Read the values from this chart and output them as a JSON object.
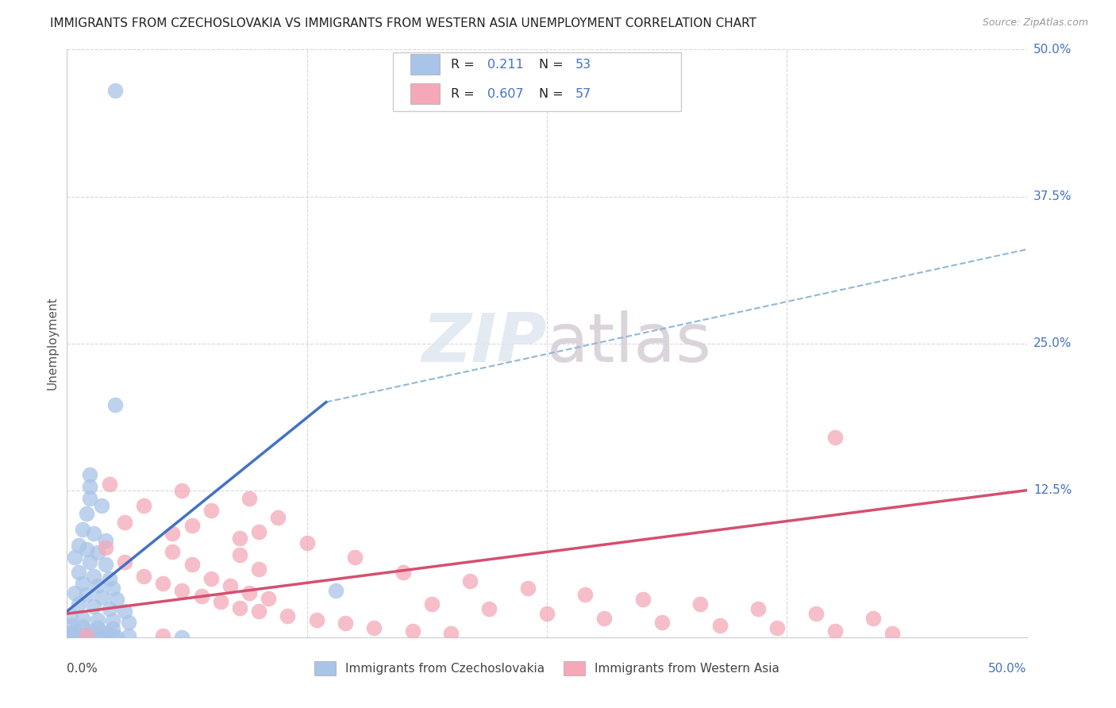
{
  "title": "IMMIGRANTS FROM CZECHOSLOVAKIA VS IMMIGRANTS FROM WESTERN ASIA UNEMPLOYMENT CORRELATION CHART",
  "source": "Source: ZipAtlas.com",
  "ylabel": "Unemployment",
  "xlim": [
    0,
    0.5
  ],
  "ylim": [
    0,
    0.5
  ],
  "color_blue": "#a8c4e8",
  "color_pink": "#f4a8b8",
  "line_blue": "#4472c4",
  "line_pink": "#d45070",
  "line_dashed": "#90b8d8",
  "background": "#ffffff",
  "grid_color": "#d8d8d8",
  "right_tick_color": "#4472c4",
  "right_ticks": [
    [
      "50.0%",
      0.5
    ],
    [
      "37.5%",
      0.375
    ],
    [
      "25.0%",
      0.25
    ],
    [
      "12.5%",
      0.125
    ]
  ],
  "blue_points": [
    [
      0.025,
      0.465
    ],
    [
      0.025,
      0.198
    ],
    [
      0.012,
      0.138
    ],
    [
      0.012,
      0.128
    ],
    [
      0.012,
      0.118
    ],
    [
      0.018,
      0.112
    ],
    [
      0.01,
      0.105
    ],
    [
      0.008,
      0.092
    ],
    [
      0.014,
      0.088
    ],
    [
      0.02,
      0.082
    ],
    [
      0.006,
      0.078
    ],
    [
      0.01,
      0.075
    ],
    [
      0.016,
      0.072
    ],
    [
      0.004,
      0.068
    ],
    [
      0.012,
      0.064
    ],
    [
      0.02,
      0.062
    ],
    [
      0.006,
      0.055
    ],
    [
      0.014,
      0.052
    ],
    [
      0.022,
      0.05
    ],
    [
      0.008,
      0.046
    ],
    [
      0.016,
      0.044
    ],
    [
      0.024,
      0.042
    ],
    [
      0.004,
      0.038
    ],
    [
      0.01,
      0.036
    ],
    [
      0.018,
      0.034
    ],
    [
      0.026,
      0.032
    ],
    [
      0.006,
      0.028
    ],
    [
      0.014,
      0.026
    ],
    [
      0.022,
      0.024
    ],
    [
      0.03,
      0.022
    ],
    [
      0.002,
      0.018
    ],
    [
      0.008,
      0.016
    ],
    [
      0.016,
      0.015
    ],
    [
      0.024,
      0.014
    ],
    [
      0.032,
      0.013
    ],
    [
      0.002,
      0.01
    ],
    [
      0.008,
      0.009
    ],
    [
      0.016,
      0.008
    ],
    [
      0.024,
      0.007
    ],
    [
      0.004,
      0.006
    ],
    [
      0.012,
      0.005
    ],
    [
      0.02,
      0.004
    ],
    [
      0.002,
      0.003
    ],
    [
      0.008,
      0.002
    ],
    [
      0.016,
      0.002
    ],
    [
      0.024,
      0.001
    ],
    [
      0.032,
      0.001
    ],
    [
      0.002,
      0.0
    ],
    [
      0.01,
      0.0
    ],
    [
      0.018,
      0.0
    ],
    [
      0.14,
      0.04
    ],
    [
      0.06,
      0.0
    ],
    [
      0.026,
      0.0
    ]
  ],
  "pink_points": [
    [
      0.022,
      0.13
    ],
    [
      0.06,
      0.125
    ],
    [
      0.095,
      0.118
    ],
    [
      0.04,
      0.112
    ],
    [
      0.075,
      0.108
    ],
    [
      0.11,
      0.102
    ],
    [
      0.03,
      0.098
    ],
    [
      0.065,
      0.095
    ],
    [
      0.1,
      0.09
    ],
    [
      0.055,
      0.088
    ],
    [
      0.09,
      0.084
    ],
    [
      0.125,
      0.08
    ],
    [
      0.02,
      0.076
    ],
    [
      0.055,
      0.073
    ],
    [
      0.09,
      0.07
    ],
    [
      0.15,
      0.068
    ],
    [
      0.03,
      0.064
    ],
    [
      0.065,
      0.062
    ],
    [
      0.1,
      0.058
    ],
    [
      0.175,
      0.055
    ],
    [
      0.04,
      0.052
    ],
    [
      0.075,
      0.05
    ],
    [
      0.21,
      0.048
    ],
    [
      0.05,
      0.046
    ],
    [
      0.085,
      0.044
    ],
    [
      0.24,
      0.042
    ],
    [
      0.06,
      0.04
    ],
    [
      0.095,
      0.038
    ],
    [
      0.27,
      0.036
    ],
    [
      0.07,
      0.035
    ],
    [
      0.105,
      0.033
    ],
    [
      0.3,
      0.032
    ],
    [
      0.08,
      0.03
    ],
    [
      0.19,
      0.028
    ],
    [
      0.33,
      0.028
    ],
    [
      0.09,
      0.025
    ],
    [
      0.22,
      0.024
    ],
    [
      0.36,
      0.024
    ],
    [
      0.1,
      0.022
    ],
    [
      0.25,
      0.02
    ],
    [
      0.39,
      0.02
    ],
    [
      0.115,
      0.018
    ],
    [
      0.28,
      0.016
    ],
    [
      0.42,
      0.016
    ],
    [
      0.13,
      0.015
    ],
    [
      0.31,
      0.013
    ],
    [
      0.145,
      0.012
    ],
    [
      0.34,
      0.01
    ],
    [
      0.16,
      0.008
    ],
    [
      0.37,
      0.008
    ],
    [
      0.18,
      0.005
    ],
    [
      0.4,
      0.005
    ],
    [
      0.2,
      0.003
    ],
    [
      0.43,
      0.003
    ],
    [
      0.01,
      0.002
    ],
    [
      0.05,
      0.001
    ],
    [
      0.4,
      0.17
    ]
  ],
  "blue_line": [
    [
      0.0,
      0.022
    ],
    [
      0.135,
      0.2
    ]
  ],
  "pink_line": [
    [
      0.0,
      0.02
    ],
    [
      0.5,
      0.125
    ]
  ],
  "dashed_line": [
    [
      0.135,
      0.2
    ],
    [
      0.5,
      0.33
    ]
  ]
}
